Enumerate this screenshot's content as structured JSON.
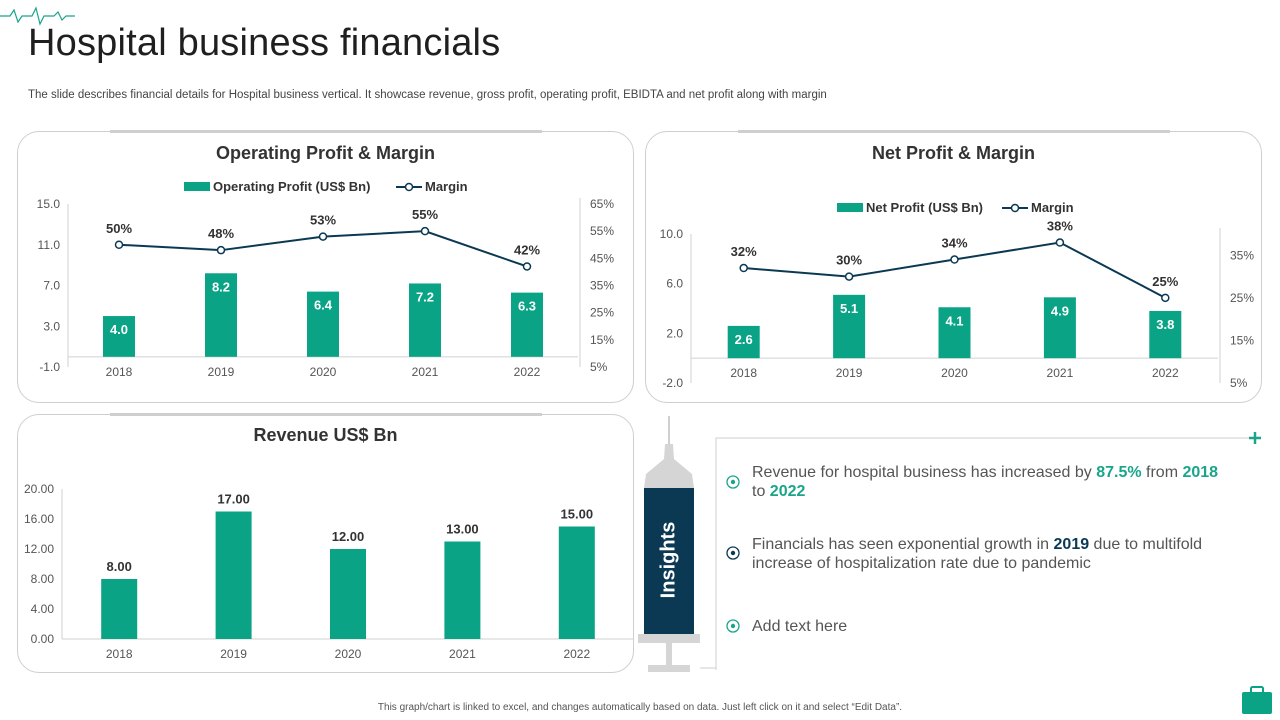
{
  "page": {
    "title": "Hospital business financials",
    "subtitle": "The slide describes financial details for Hospital business vertical. It showcase revenue, gross profit, operating profit, EBIDTA and net profit along with margin",
    "footer": "This graph/chart is linked to excel, and changes automatically based on data. Just left click on it and select “Edit Data”."
  },
  "colors": {
    "bar": "#0aa386",
    "line": "#0b3954",
    "accent": "#1aa58a"
  },
  "icons": {
    "pulse": "heartbeat-icon",
    "plus": "plus-icon",
    "bullet": "target-bullet-icon",
    "corner": "briefcase-icon"
  },
  "insights": {
    "label": "Insights",
    "items": [
      {
        "pre": "Revenue for hospital business has increased by ",
        "h1": "87.5%",
        "mid": " from ",
        "h2": "2018",
        "mid2": " to ",
        "h3": "2022"
      },
      {
        "pre": "Financials has seen exponential growth in ",
        "h1": "2019",
        "post": " due to multifold increase of hospitalization rate due to pandemic"
      },
      {
        "text": "Add text here"
      }
    ]
  },
  "chart_data": [
    {
      "id": "op",
      "type": "bar",
      "title": "Operating Profit & Margin",
      "legend": [
        "Operating Profit (US$ Bn)",
        "Margin"
      ],
      "categories": [
        "2018",
        "2019",
        "2020",
        "2021",
        "2022"
      ],
      "values": [
        4.0,
        8.2,
        6.4,
        7.2,
        6.3
      ],
      "value_labels": [
        "4.0",
        "8.2",
        "6.4",
        "7.2",
        "6.3"
      ],
      "ylim": [
        -1.0,
        15.0
      ],
      "yticks": [
        -1.0,
        3.0,
        7.0,
        11.0,
        15.0
      ],
      "ytick_labels": [
        "-1.0",
        "3.0",
        "7.0",
        "11.0",
        "15.0"
      ],
      "line_values": [
        50,
        48,
        53,
        55,
        42
      ],
      "line_labels": [
        "50%",
        "48%",
        "53%",
        "55%",
        "42%"
      ],
      "y2lim": [
        5,
        65
      ],
      "y2ticks": [
        5,
        15,
        25,
        35,
        45,
        55,
        65
      ],
      "y2tick_labels": [
        "5%",
        "15%",
        "25%",
        "35%",
        "45%",
        "55%",
        "65%"
      ]
    },
    {
      "id": "net",
      "type": "bar",
      "title": "Net Profit & Margin",
      "legend": [
        "Net Profit (US$ Bn)",
        "Margin"
      ],
      "categories": [
        "2018",
        "2019",
        "2020",
        "2021",
        "2022"
      ],
      "values": [
        2.6,
        5.1,
        4.1,
        4.9,
        3.8
      ],
      "value_labels": [
        "2.6",
        "5.1",
        "4.1",
        "4.9",
        "3.8"
      ],
      "ylim": [
        -2.0,
        10.0
      ],
      "yticks": [
        -2.0,
        2.0,
        6.0,
        10.0
      ],
      "ytick_labels": [
        "-2.0",
        "2.0",
        "6.0",
        "10.0"
      ],
      "line_values": [
        32,
        30,
        34,
        38,
        25
      ],
      "line_labels": [
        "32%",
        "30%",
        "34%",
        "38%",
        "25%"
      ],
      "y2lim": [
        5,
        40
      ],
      "y2ticks": [
        5,
        15,
        25,
        35
      ],
      "y2tick_labels": [
        "5%",
        "15%",
        "25%",
        "35%"
      ]
    },
    {
      "id": "rev",
      "type": "bar",
      "title": "Revenue US$ Bn",
      "categories": [
        "2018",
        "2019",
        "2020",
        "2021",
        "2022"
      ],
      "values": [
        8.0,
        17.0,
        12.0,
        13.0,
        15.0
      ],
      "value_labels": [
        "8.00",
        "17.00",
        "12.00",
        "13.00",
        "15.00"
      ],
      "ylim": [
        0,
        20
      ],
      "yticks": [
        0,
        4,
        8,
        12,
        16,
        20
      ],
      "ytick_labels": [
        "0.00",
        "4.00",
        "8.00",
        "12.00",
        "16.00",
        "20.00"
      ]
    }
  ]
}
